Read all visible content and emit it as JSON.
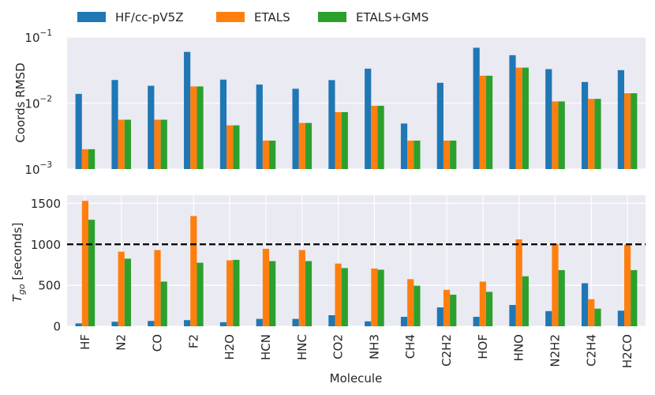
{
  "legend": {
    "items": [
      {
        "label": "HF/cc-pV5Z",
        "color": "#1f77b4"
      },
      {
        "label": "ETALS",
        "color": "#ff7f0e"
      },
      {
        "label": "ETALS+GMS",
        "color": "#2ca02c"
      }
    ]
  },
  "chart_data": [
    {
      "type": "bar",
      "yscale": "log",
      "ylabel": "Coords RMSD",
      "ylim": [
        0.001,
        0.1
      ],
      "yticks": [
        {
          "value": 0.1,
          "base": "10",
          "exp": "−1"
        },
        {
          "value": 0.01,
          "base": "10",
          "exp": "−2"
        },
        {
          "value": 0.001,
          "base": "10",
          "exp": "−3"
        }
      ],
      "categories": [
        "HF",
        "N2",
        "CO",
        "F2",
        "H2O",
        "HCN",
        "HNC",
        "CO2",
        "NH3",
        "CH4",
        "C2H2",
        "HOF",
        "HNO",
        "N2H2",
        "C2H4",
        "H2CO"
      ],
      "series": [
        {
          "name": "HF/cc-pV5Z",
          "values": [
            0.0138,
            0.0224,
            0.0183,
            0.0597,
            0.0227,
            0.0191,
            0.0165,
            0.0223,
            0.0333,
            0.0049,
            0.0203,
            0.069,
            0.0532,
            0.0327,
            0.0209,
            0.0316
          ]
        },
        {
          "name": "ETALS",
          "values": [
            0.002,
            0.0056,
            0.0056,
            0.0179,
            0.0046,
            0.0027,
            0.005,
            0.0073,
            0.0091,
            0.0027,
            0.0027,
            0.026,
            0.0345,
            0.0106,
            0.0116,
            0.0141
          ]
        },
        {
          "name": "ETALS+GMS",
          "values": [
            0.002,
            0.0056,
            0.0056,
            0.0179,
            0.0046,
            0.0027,
            0.005,
            0.0073,
            0.0091,
            0.0027,
            0.0027,
            0.026,
            0.0345,
            0.0106,
            0.0116,
            0.0141
          ]
        }
      ]
    },
    {
      "type": "bar",
      "yscale": "linear",
      "ylabel_main": "T",
      "ylabel_sub": "go",
      "ylabel_rest": " [seconds]",
      "xlabel": "Molecule",
      "ylim": [
        0,
        1600
      ],
      "yticks": [
        0,
        500,
        1000,
        1500
      ],
      "reference_line": 1000,
      "categories": [
        "HF",
        "N2",
        "CO",
        "F2",
        "H2O",
        "HCN",
        "HNC",
        "CO2",
        "NH3",
        "CH4",
        "C2H2",
        "HOF",
        "HNO",
        "N2H2",
        "C2H4",
        "H2CO"
      ],
      "series": [
        {
          "name": "HF/cc-pV5Z",
          "values": [
            35,
            55,
            65,
            75,
            50,
            90,
            90,
            135,
            60,
            115,
            230,
            115,
            260,
            185,
            525,
            190
          ]
        },
        {
          "name": "ETALS",
          "values": [
            1530,
            910,
            930,
            1345,
            805,
            945,
            930,
            765,
            705,
            575,
            445,
            545,
            1060,
            1005,
            330,
            995
          ]
        },
        {
          "name": "ETALS+GMS",
          "values": [
            1300,
            825,
            545,
            775,
            810,
            795,
            795,
            710,
            690,
            495,
            385,
            420,
            610,
            685,
            215,
            685
          ]
        }
      ]
    }
  ]
}
